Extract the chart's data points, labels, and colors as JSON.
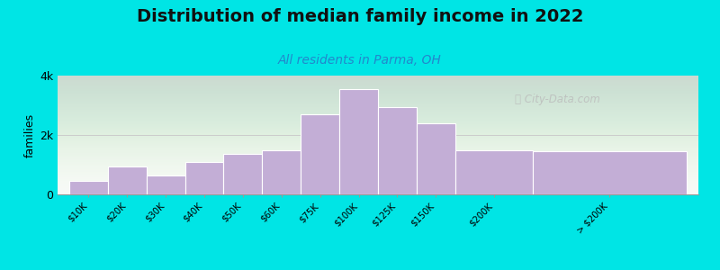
{
  "categories": [
    "$10K",
    "$20K",
    "$30K",
    "$40K",
    "$50K",
    "$60K",
    "$75K",
    "$100K",
    "$125K",
    "$150K",
    "$200K",
    "> $200K"
  ],
  "values": [
    450,
    950,
    650,
    1100,
    1350,
    1500,
    2700,
    3550,
    2950,
    2400,
    1500,
    1450
  ],
  "bar_widths": [
    1,
    1,
    1,
    1,
    1,
    1,
    1,
    1,
    1,
    1,
    2,
    4
  ],
  "bar_color": "#c3aed6",
  "bar_edge_color": "#ffffff",
  "title": "Distribution of median family income in 2022",
  "subtitle": "All residents in Parma, OH",
  "ylabel": "families",
  "ylim": [
    0,
    4000
  ],
  "ytick_labels": [
    "0",
    "2k",
    "4k"
  ],
  "title_fontsize": 14,
  "subtitle_fontsize": 10,
  "subtitle_color": "#2288cc",
  "ylabel_fontsize": 9,
  "background_color": "#00e5e5",
  "watermark_text": "ⓘ City-Data.com",
  "bar_linewidth": 0.8
}
